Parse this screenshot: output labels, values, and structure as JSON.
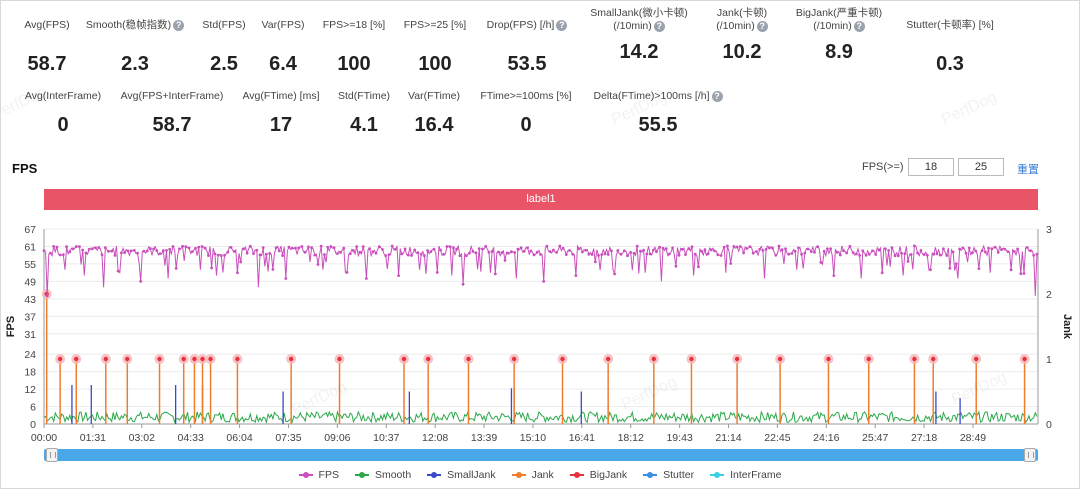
{
  "stats_row1": [
    {
      "label": "Avg(FPS)",
      "value": "58.7",
      "help": false
    },
    {
      "label": "Smooth(稳帧指数)",
      "value": "2.3",
      "help": true
    },
    {
      "label": "Std(FPS)",
      "value": "2.5",
      "help": false
    },
    {
      "label": "Var(FPS)",
      "value": "6.4",
      "help": false
    },
    {
      "label": "FPS>=18 [%]",
      "value": "100",
      "help": false
    },
    {
      "label": "FPS>=25 [%]",
      "value": "100",
      "help": false
    },
    {
      "label": "Drop(FPS) [/h]",
      "value": "53.5",
      "help": true
    },
    {
      "label": "SmallJank(微小卡顿)",
      "label2": "(/10min)",
      "value": "14.2",
      "help": true
    },
    {
      "label": "Jank(卡顿)",
      "label2": "(/10min)",
      "value": "10.2",
      "help": true
    },
    {
      "label": "BigJank(严重卡顿)",
      "label2": "(/10min)",
      "value": "8.9",
      "help": true
    },
    {
      "label": "Stutter(卡顿率) [%]",
      "value": "0.3",
      "help": false
    }
  ],
  "stats_row2": [
    {
      "label": "Avg(InterFrame)",
      "value": "0",
      "help": false
    },
    {
      "label": "Avg(FPS+InterFrame)",
      "value": "58.7",
      "help": false
    },
    {
      "label": "Avg(FTime) [ms]",
      "value": "17",
      "help": false
    },
    {
      "label": "Std(FTime)",
      "value": "4.1",
      "help": false
    },
    {
      "label": "Var(FTime)",
      "value": "16.4",
      "help": false
    },
    {
      "label": "FTime>=100ms [%]",
      "value": "0",
      "help": false
    },
    {
      "label": "Delta(FTime)>100ms [/h]",
      "value": "55.5",
      "help": true
    }
  ],
  "section_title": "FPS",
  "threshold": {
    "label": "FPS(>=)",
    "value1": "18",
    "value2": "25",
    "reset": "重置"
  },
  "label_bar": "label1",
  "watermark": "PerfDog",
  "chart_data": {
    "type": "line",
    "ylabel": "FPS",
    "y2label": "Jank",
    "ylim": [
      0,
      67
    ],
    "y2lim": [
      0,
      3
    ],
    "yticks": [
      0,
      6,
      12,
      18,
      24,
      31,
      37,
      43,
      49,
      55,
      61,
      67
    ],
    "y2ticks": [
      0,
      1,
      2,
      3
    ],
    "xlim_seconds": [
      0,
      1850
    ],
    "xticks": [
      "00:00",
      "01:31",
      "03:02",
      "04:33",
      "06:04",
      "07:35",
      "09:06",
      "10:37",
      "12:08",
      "13:39",
      "15:10",
      "16:41",
      "18:12",
      "19:43",
      "21:14",
      "22:45",
      "24:16",
      "25:47",
      "27:18",
      "28:49"
    ],
    "fps_baseline": 59.5,
    "fps_dips": [
      [
        5,
        44
      ],
      [
        40,
        53
      ],
      [
        75,
        51
      ],
      [
        110,
        47
      ],
      [
        140,
        52
      ],
      [
        180,
        49
      ],
      [
        230,
        50
      ],
      [
        290,
        53
      ],
      [
        320,
        51
      ],
      [
        360,
        52
      ],
      [
        400,
        47
      ],
      [
        450,
        50
      ],
      [
        520,
        53
      ],
      [
        560,
        52
      ],
      [
        600,
        50
      ],
      [
        660,
        51
      ],
      [
        700,
        53
      ],
      [
        760,
        51
      ],
      [
        780,
        48
      ],
      [
        830,
        52
      ],
      [
        880,
        50
      ],
      [
        930,
        49
      ],
      [
        990,
        51
      ],
      [
        1060,
        53
      ],
      [
        1120,
        52
      ],
      [
        1150,
        49
      ],
      [
        1210,
        51
      ],
      [
        1270,
        52
      ],
      [
        1340,
        50
      ],
      [
        1400,
        53
      ],
      [
        1470,
        51
      ],
      [
        1520,
        50
      ],
      [
        1560,
        52
      ],
      [
        1600,
        51
      ],
      [
        1650,
        53
      ],
      [
        1700,
        50
      ],
      [
        1760,
        52
      ],
      [
        1800,
        53
      ],
      [
        1845,
        44
      ]
    ],
    "bigjank": [
      [
        5,
        2
      ],
      [
        30,
        1
      ],
      [
        60,
        1
      ],
      [
        115,
        1
      ],
      [
        155,
        1
      ],
      [
        215,
        1
      ],
      [
        260,
        1
      ],
      [
        280,
        1
      ],
      [
        295,
        1
      ],
      [
        310,
        1
      ],
      [
        360,
        1
      ],
      [
        460,
        1
      ],
      [
        550,
        1
      ],
      [
        670,
        1
      ],
      [
        715,
        1
      ],
      [
        790,
        1
      ],
      [
        875,
        1
      ],
      [
        965,
        1
      ],
      [
        1050,
        1
      ],
      [
        1135,
        1
      ],
      [
        1205,
        1
      ],
      [
        1290,
        1
      ],
      [
        1370,
        1
      ],
      [
        1460,
        1
      ],
      [
        1535,
        1
      ],
      [
        1620,
        1
      ],
      [
        1655,
        1
      ],
      [
        1735,
        1
      ],
      [
        1825,
        1
      ]
    ],
    "smalljank": [
      [
        52,
        0.6
      ],
      [
        88,
        0.6
      ],
      [
        245,
        0.6
      ],
      [
        295,
        0.6
      ],
      [
        445,
        0.5
      ],
      [
        680,
        0.5
      ],
      [
        870,
        0.55
      ],
      [
        875,
        0.55
      ],
      [
        1000,
        0.5
      ],
      [
        1660,
        0.5
      ],
      [
        1705,
        0.4
      ]
    ],
    "smooth_baseline": 3,
    "series": [
      {
        "name": "FPS",
        "color": "#c94fbd"
      },
      {
        "name": "Smooth",
        "color": "#2ba84a"
      },
      {
        "name": "SmallJank",
        "color": "#3949c9"
      },
      {
        "name": "Jank",
        "color": "#f07d2c"
      },
      {
        "name": "BigJank",
        "color": "#e8303a"
      },
      {
        "name": "Stutter",
        "color": "#3a8ee6"
      },
      {
        "name": "InterFrame",
        "color": "#3ad0e0"
      }
    ]
  }
}
